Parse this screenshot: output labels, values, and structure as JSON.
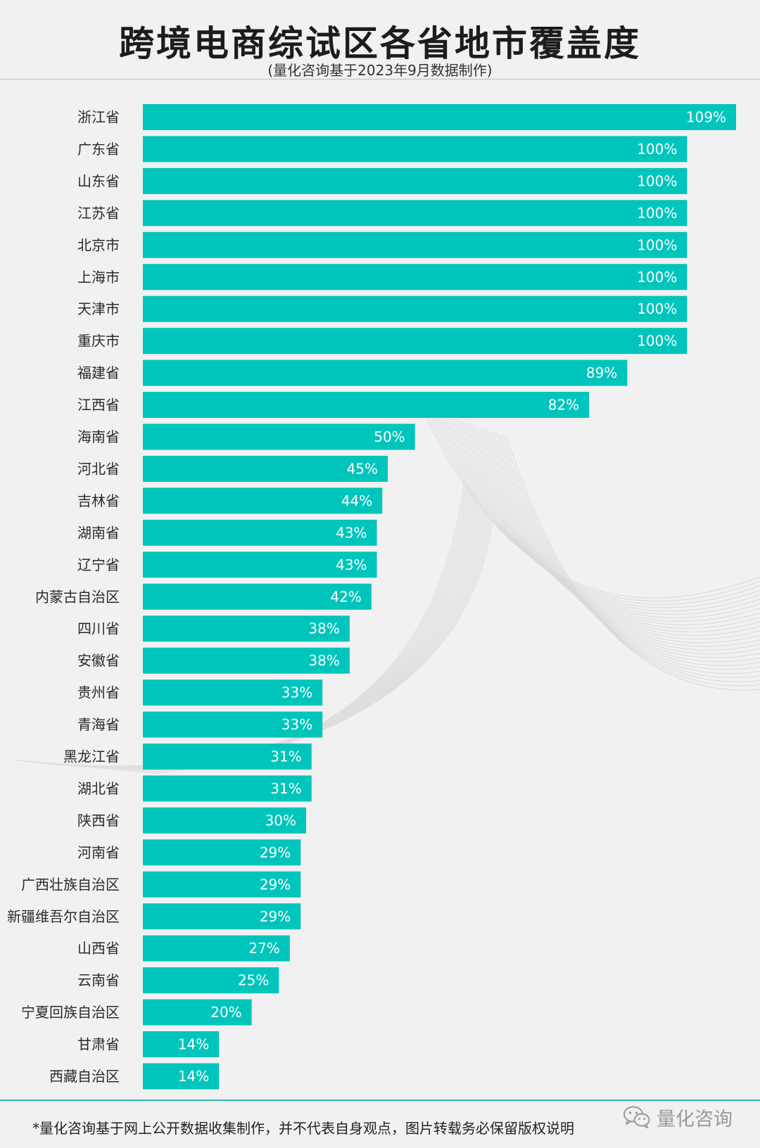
{
  "header": {
    "title": "跨境电商综试区各省地市覆盖度",
    "subtitle": "(量化咨询基于2023年9月数据制作)"
  },
  "footer": {
    "note": "*量化咨询基于网上公开数据收集制作，并不代表自身观点，图片转载务必保留版权说明",
    "brand": "量化咨询",
    "brand_icon": "wechat-icon"
  },
  "colors": {
    "bar": "#00c5bc",
    "accent_line": "#2bbfb0",
    "background": "#f1f1f1"
  },
  "chart_data": {
    "type": "bar",
    "orientation": "horizontal",
    "title": "跨境电商综试区各省地市覆盖度",
    "subtitle": "(量化咨询基于2023年9月数据制作)",
    "xlabel": "",
    "ylabel": "",
    "value_suffix": "%",
    "xlim": [
      0,
      109
    ],
    "grid": false,
    "categories": [
      "浙江省",
      "广东省",
      "山东省",
      "江苏省",
      "北京市",
      "上海市",
      "天津市",
      "重庆市",
      "福建省",
      "江西省",
      "海南省",
      "河北省",
      "吉林省",
      "湖南省",
      "辽宁省",
      "内蒙古自治区",
      "四川省",
      "安徽省",
      "贵州省",
      "青海省",
      "黑龙江省",
      "湖北省",
      "陕西省",
      "河南省",
      "广西壮族自治区",
      "新疆维吾尔自治区",
      "山西省",
      "云南省",
      "宁夏回族自治区",
      "甘肃省",
      "西藏自治区"
    ],
    "values": [
      109,
      100,
      100,
      100,
      100,
      100,
      100,
      100,
      89,
      82,
      50,
      45,
      44,
      43,
      43,
      42,
      38,
      38,
      33,
      33,
      31,
      31,
      30,
      29,
      29,
      29,
      27,
      25,
      20,
      14,
      14
    ]
  }
}
